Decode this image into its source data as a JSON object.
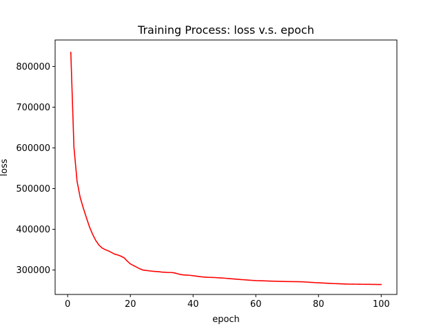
{
  "chart_data": {
    "type": "line",
    "title": "Training Process: loss v.s. epoch",
    "xlabel": "epoch",
    "ylabel": "loss",
    "xlim": [
      -4,
      105
    ],
    "ylim": [
      240000,
      865000
    ],
    "xticks": [
      0,
      20,
      40,
      60,
      80,
      100
    ],
    "yticks": [
      300000,
      400000,
      500000,
      600000,
      700000,
      800000
    ],
    "grid": false,
    "legend": "none",
    "series": [
      {
        "color": "#ff0000",
        "x": [
          1,
          2,
          3,
          4,
          5,
          6,
          7,
          8,
          9,
          10,
          11,
          12,
          13,
          14,
          15,
          16,
          17,
          18,
          19,
          20,
          21,
          22,
          23,
          24,
          25,
          26,
          27,
          28,
          29,
          30,
          31,
          32,
          33,
          34,
          35,
          36,
          37,
          38,
          39,
          40,
          41,
          42,
          43,
          44,
          45,
          46,
          47,
          48,
          49,
          50,
          51,
          52,
          53,
          54,
          55,
          56,
          57,
          58,
          59,
          60,
          61,
          62,
          63,
          64,
          65,
          66,
          67,
          68,
          69,
          70,
          71,
          72,
          73,
          74,
          75,
          76,
          77,
          78,
          79,
          80,
          81,
          82,
          83,
          84,
          85,
          86,
          87,
          88,
          89,
          90,
          91,
          92,
          93,
          94,
          95,
          96,
          97,
          98,
          99,
          100
        ],
        "y": [
          835000,
          602000,
          518000,
          478000,
          452000,
          428000,
          405000,
          387000,
          372000,
          361000,
          354000,
          350000,
          347000,
          343000,
          339000,
          337000,
          334000,
          330000,
          322000,
          315000,
          311000,
          307000,
          303000,
          300000,
          299000,
          298000,
          297000,
          296500,
          296000,
          295000,
          294500,
          294000,
          294000,
          293000,
          291000,
          289000,
          288000,
          287500,
          287000,
          286000,
          285000,
          284000,
          283000,
          282500,
          282000,
          281800,
          281500,
          281000,
          280500,
          280000,
          279200,
          278600,
          278000,
          277400,
          276800,
          276200,
          275600,
          275000,
          274500,
          274000,
          273800,
          273600,
          273300,
          273000,
          272700,
          272500,
          272300,
          272100,
          271900,
          271700,
          271600,
          271500,
          271400,
          271200,
          271000,
          270500,
          270000,
          269500,
          269000,
          268600,
          268200,
          267800,
          267400,
          267000,
          266700,
          266400,
          266100,
          265800,
          265600,
          265400,
          265300,
          265200,
          265100,
          265000,
          264900,
          264800,
          264700,
          264600,
          264500,
          264400
        ]
      }
    ]
  }
}
